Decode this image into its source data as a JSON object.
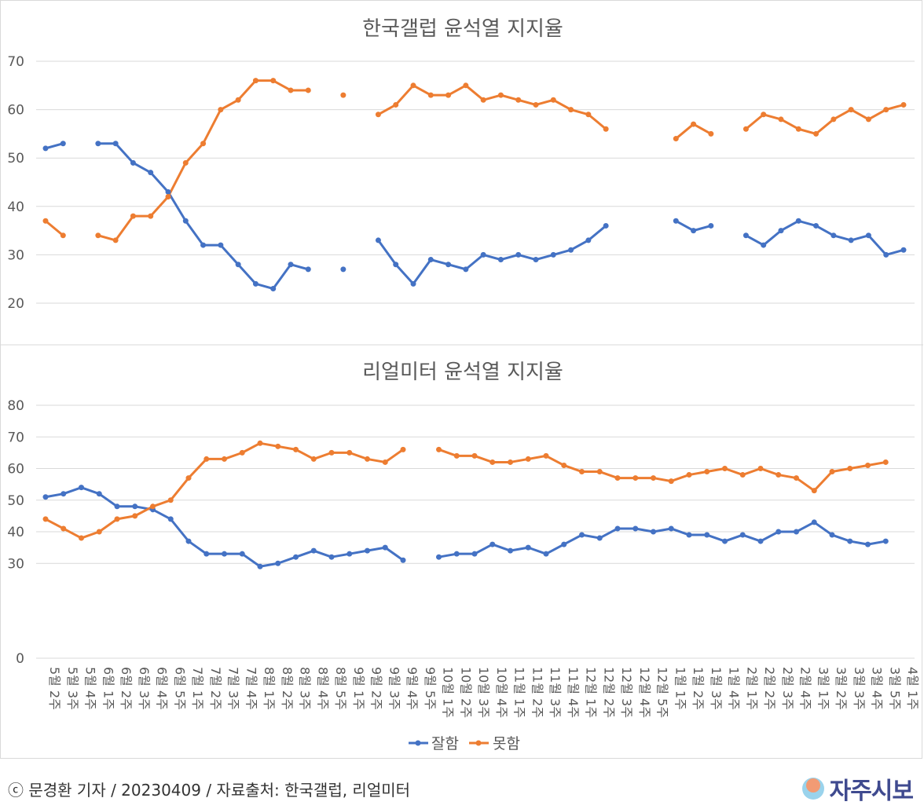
{
  "footer": {
    "credit": "ⓒ 문경환 기자 / 20230409 / 자료출처: 한국갤럽, 리얼미터",
    "logo_text": "자주시보"
  },
  "colors": {
    "good": "#4472C4",
    "bad": "#ED7D31",
    "grid": "#d9d9d9",
    "text": "#595959"
  },
  "chart_data": [
    {
      "type": "line",
      "title": "한국갤럽 윤석열 지지율",
      "ylim": [
        20,
        70
      ],
      "yticks": [
        20,
        30,
        40,
        50,
        60,
        70
      ],
      "grid": true,
      "series": [
        {
          "name": "잘함",
          "color": "#4472C4",
          "values": [
            52,
            53,
            null,
            53,
            53,
            49,
            47,
            43,
            37,
            32,
            32,
            28,
            24,
            23,
            28,
            27,
            null,
            27,
            null,
            33,
            28,
            24,
            29,
            28,
            27,
            30,
            29,
            30,
            29,
            30,
            31,
            33,
            36,
            null,
            null,
            null,
            37,
            35,
            36,
            null,
            34,
            32,
            35,
            37,
            36,
            34,
            33,
            34,
            30,
            31
          ]
        },
        {
          "name": "못함",
          "color": "#ED7D31",
          "values": [
            37,
            34,
            null,
            34,
            33,
            38,
            38,
            42,
            49,
            53,
            60,
            62,
            66,
            66,
            64,
            64,
            null,
            63,
            null,
            59,
            61,
            65,
            63,
            63,
            65,
            62,
            63,
            62,
            61,
            62,
            60,
            59,
            56,
            null,
            null,
            null,
            54,
            57,
            55,
            null,
            56,
            59,
            58,
            56,
            55,
            58,
            60,
            58,
            60,
            61
          ]
        }
      ]
    },
    {
      "type": "line",
      "title": "리얼미터 윤석열 지지율",
      "ylim": [
        0,
        80
      ],
      "yticks": [
        0,
        30,
        40,
        50,
        60,
        70,
        80
      ],
      "grid": true,
      "legend_position": "bottom",
      "categories": [
        "5월 2주",
        "5월 3주",
        "5월 4주",
        "6월 1주",
        "6월 2주",
        "6월 3주",
        "6월 4주",
        "6월 5주",
        "7월 1주",
        "7월 2주",
        "7월 3주",
        "7월 4주",
        "8월 1주",
        "8월 2주",
        "8월 3주",
        "8월 4주",
        "8월 5주",
        "9월 1주",
        "9월 2주",
        "9월 3주",
        "9월 4주",
        "9월 5주",
        "10월 1주",
        "10월 2주",
        "10월 3주",
        "10월 4주",
        "11월 1주",
        "11월 2주",
        "11월 3주",
        "11월 4주",
        "12월 1주",
        "12월 2주",
        "12월 3주",
        "12월 4주",
        "12월 5주",
        "1월 1주",
        "1월 2주",
        "1월 3주",
        "1월 4주",
        "2월 1주",
        "2월 2주",
        "2월 3주",
        "2월 4주",
        "3월 1주",
        "3월 2주",
        "3월 3주",
        "3월 4주",
        "3월 5주",
        "4월 1주"
      ],
      "series": [
        {
          "name": "잘함",
          "color": "#4472C4",
          "values": [
            51,
            52,
            54,
            52,
            48,
            48,
            47,
            44,
            37,
            33,
            33,
            33,
            29,
            30,
            32,
            34,
            32,
            33,
            34,
            35,
            31,
            null,
            32,
            33,
            33,
            36,
            34,
            35,
            33,
            36,
            39,
            38,
            41,
            41,
            40,
            41,
            39,
            39,
            37,
            39,
            37,
            40,
            40,
            43,
            39,
            37,
            36,
            37,
            null
          ]
        },
        {
          "name": "못함",
          "color": "#ED7D31",
          "values": [
            44,
            41,
            38,
            40,
            44,
            45,
            48,
            50,
            57,
            63,
            63,
            65,
            68,
            67,
            66,
            63,
            65,
            65,
            63,
            62,
            66,
            null,
            66,
            64,
            64,
            62,
            62,
            63,
            64,
            61,
            59,
            59,
            57,
            57,
            57,
            56,
            58,
            59,
            60,
            58,
            60,
            58,
            57,
            53,
            59,
            60,
            61,
            62,
            null
          ]
        }
      ]
    }
  ]
}
